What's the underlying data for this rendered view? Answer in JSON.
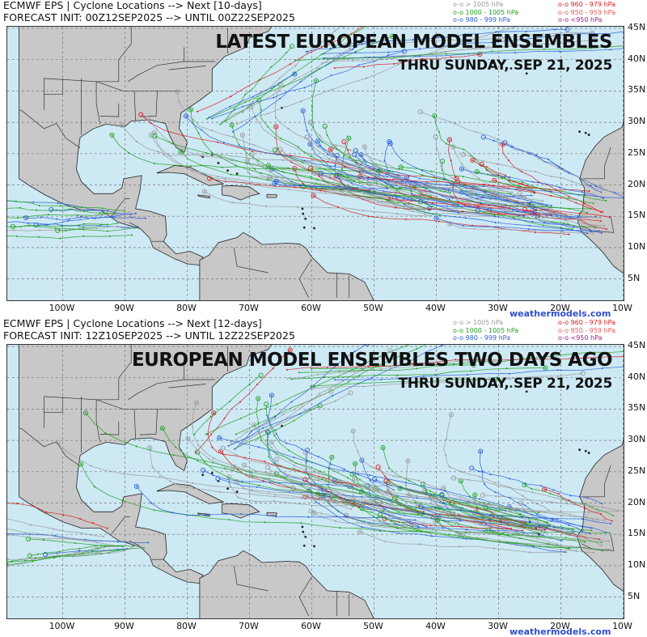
{
  "colors": {
    "ocean": "#cde9f4",
    "land": "#c8c8c8",
    "gt1005": "#9a9a9a",
    "p1000_1005": "#22a022",
    "p980_999": "#2b5fd8",
    "p960_979": "#d42020",
    "p950_959": "#e05a5a",
    "lt950": "#9a1f8f",
    "brand": "#2f4fd0"
  },
  "legend": {
    "left": [
      {
        "label": "o-o > 1005 hPa",
        "color": "#9a9a9a"
      },
      {
        "label": "o-o 1000 - 1005 hPa",
        "color": "#22a022"
      },
      {
        "label": "o-o 980 - 999 hPa",
        "color": "#2b5fd8"
      }
    ],
    "right": [
      {
        "label": "o-o 960 - 979 hPa",
        "color": "#d42020"
      },
      {
        "label": "o-o 950 - 959 hPa",
        "color": "#e05a5a"
      },
      {
        "label": "o-o <950 hPa",
        "color": "#9a1f8f"
      }
    ]
  },
  "lat_labels": [
    "45N",
    "40N",
    "35N",
    "30N",
    "25N",
    "20N",
    "15N",
    "10N",
    "5N"
  ],
  "lon_labels": [
    "100W",
    "90W",
    "80W",
    "70W",
    "60W",
    "50W",
    "40W",
    "30W",
    "20W",
    "10W"
  ],
  "panels": [
    {
      "header_line1": "ECMWF EPS | Cyclone Locations --> Next [10-days]",
      "header_line2": "FORECAST INIT: 00Z12SEP2025 --> UNTIL 00Z22SEP2025",
      "headline": "LATEST EUROPEAN MODEL ENSEMBLES",
      "subheadline": "THRU SUNDAY, SEP 21, 2025",
      "brand": "weathermodels.com"
    },
    {
      "header_line1": "ECMWF EPS | Cyclone Locations --> Next [12-days]",
      "header_line2": "FORECAST INIT: 12Z10SEP2025 --> UNTIL 12Z22SEP2025",
      "headline": "EUROPEAN MODEL ENSEMBLES TWO DAYS AGO",
      "subheadline": "THRU SUNDAY, SEP 21, 2025",
      "brand": "weathermodels.com"
    }
  ]
}
